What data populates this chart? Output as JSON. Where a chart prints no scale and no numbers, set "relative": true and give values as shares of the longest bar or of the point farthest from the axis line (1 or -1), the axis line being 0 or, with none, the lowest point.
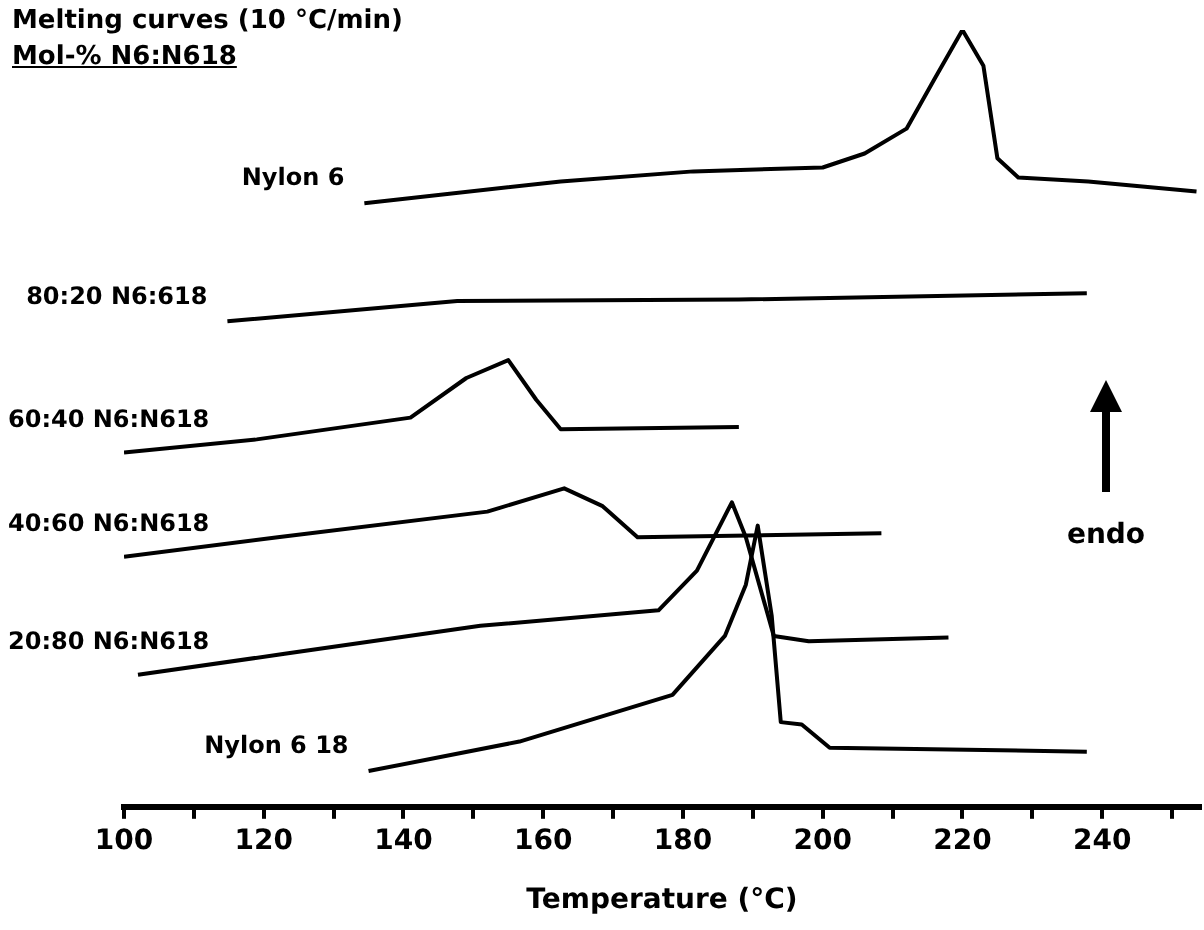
{
  "chart_data": {
    "type": "line",
    "title": "Melting curves (10 °C/min)",
    "subtitle": "Mol-% N6:N618",
    "xlabel": "Temperature (°C)",
    "relative": true,
    "legend": false,
    "grid": false,
    "marker": "none",
    "line_style": "solid",
    "xlim": [
      100,
      254
    ],
    "xticks": [
      100,
      {
        "value": 110,
        "label": null
      },
      120,
      {
        "value": 130,
        "label": null
      },
      140,
      {
        "value": 150,
        "label": null
      },
      160,
      {
        "value": 170,
        "label": null
      },
      180,
      {
        "value": 190,
        "label": null
      },
      200,
      {
        "value": 210,
        "label": null
      },
      220,
      {
        "value": 230,
        "label": null
      },
      240,
      {
        "value": 250,
        "label": null
      }
    ],
    "annotations": [
      "endo"
    ],
    "series": [
      {
        "name": "Nylon 6",
        "color": "#000000",
        "x": [
          134.4,
          162.5,
          181.5,
          200,
          206,
          212,
          216,
          220,
          223,
          225,
          228,
          238,
          253.5
        ],
        "values": [
          0.777,
          0.805,
          0.818,
          0.823,
          0.841,
          0.873,
          0.937,
          1,
          0.954,
          0.835,
          0.81,
          0.805,
          0.792
        ]
      },
      {
        "name": "80:20 N6:618",
        "color": "#000000",
        "x": [
          114.8,
          147.7,
          188,
          237.8
        ],
        "values": [
          0.625,
          0.651,
          0.653,
          0.661
        ]
      },
      {
        "name": "60:40 N6:N618",
        "color": "#000000",
        "x": [
          100,
          119,
          141,
          149,
          155,
          159,
          162.5,
          188
        ],
        "values": [
          0.456,
          0.473,
          0.501,
          0.552,
          0.575,
          0.524,
          0.486,
          0.489
        ]
      },
      {
        "name": "40:60 N6:N618",
        "color": "#000000",
        "x": [
          100,
          122,
          152,
          163,
          168.5,
          173.5,
          208.4
        ],
        "values": [
          0.322,
          0.347,
          0.38,
          0.41,
          0.387,
          0.347,
          0.352
        ]
      },
      {
        "name": "20:80 N6:N618",
        "color": "#000000",
        "x": [
          102,
          123,
          151,
          176.5,
          182,
          187,
          189,
          193,
          198,
          218
        ],
        "values": [
          0.17,
          0.197,
          0.233,
          0.253,
          0.304,
          0.392,
          0.347,
          0.22,
          0.213,
          0.218
        ]
      },
      {
        "name": "Nylon 6 18",
        "color": "#000000",
        "x": [
          135,
          156.6,
          178.5,
          186,
          189,
          190.7,
          192.7,
          194,
          197,
          201,
          237.8
        ],
        "values": [
          0.046,
          0.084,
          0.144,
          0.22,
          0.286,
          0.362,
          0.246,
          0.109,
          0.106,
          0.076,
          0.071
        ]
      }
    ]
  }
}
